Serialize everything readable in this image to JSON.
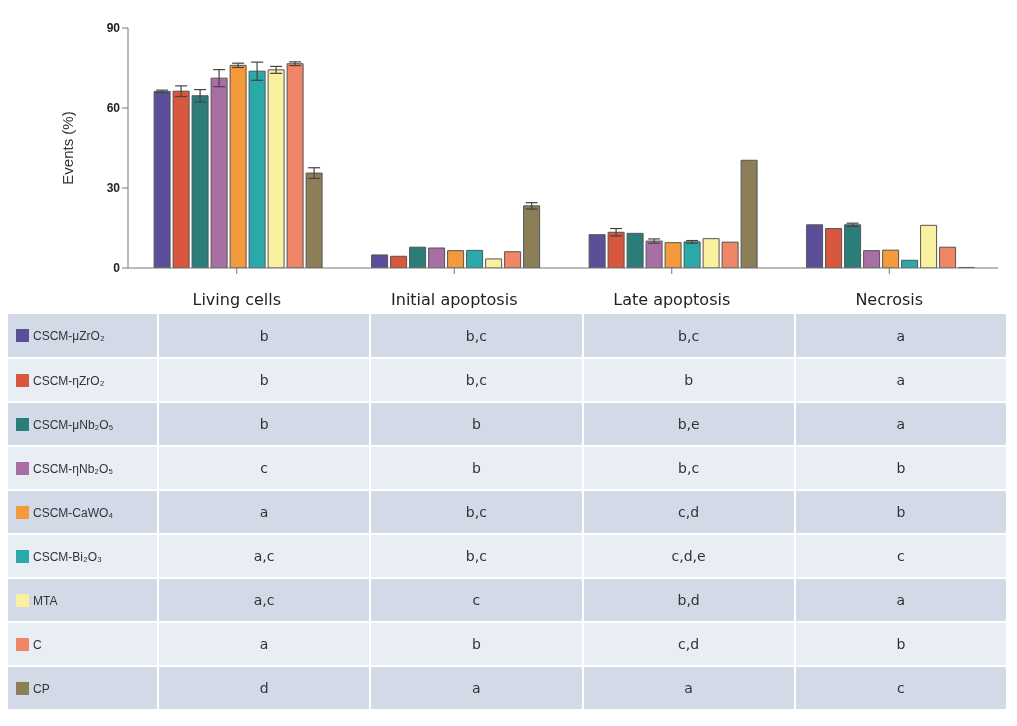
{
  "chart_data": {
    "type": "bar",
    "ylabel": "Events (%)",
    "categories": [
      "Living cells",
      "Initial apoptosis",
      "Late apoptosis",
      "Necrosis"
    ],
    "ylim": [
      0,
      90
    ],
    "yticks": [
      0,
      30,
      60,
      90
    ],
    "legend": "bottom",
    "series": [
      {
        "name": "CSCM-μZrO₂",
        "color": "#5b4f9a",
        "values": [
          66.2,
          4.9,
          12.5,
          16.2
        ],
        "errors": [
          0.5,
          null,
          null,
          null
        ],
        "value_labels": [
          "b",
          "b,c",
          "b,c",
          "a"
        ]
      },
      {
        "name": "CSCM-ηZrO₂",
        "color": "#d9573f",
        "values": [
          66.3,
          4.4,
          13.4,
          14.8
        ],
        "errors": [
          2,
          null,
          1.4,
          null
        ],
        "value_labels": [
          "b",
          "b,c",
          "b",
          "a"
        ]
      },
      {
        "name": "CSCM-μNb₂O₅",
        "color": "#2a7d78",
        "values": [
          64.6,
          7.8,
          13.0,
          16.2
        ],
        "errors": [
          2.3,
          null,
          null,
          0.6
        ],
        "value_labels": [
          "b",
          "b",
          "b,e",
          "a"
        ]
      },
      {
        "name": "CSCM-ηNb₂O₅",
        "color": "#a86fa4",
        "values": [
          71.2,
          7.5,
          10.1,
          6.5
        ],
        "errors": [
          3.2,
          null,
          0.8,
          null
        ],
        "value_labels": [
          "c",
          "b",
          "b,c",
          "b"
        ]
      },
      {
        "name": "CSCM-CaWO₄",
        "color": "#f39a3c",
        "values": [
          76.0,
          6.5,
          9.5,
          6.7
        ],
        "errors": [
          0.8,
          null,
          null,
          null
        ],
        "value_labels": [
          "a",
          "b,c",
          "c,d",
          "b"
        ]
      },
      {
        "name": "CSCM-Bi₂O₃",
        "color": "#2aa9a9",
        "values": [
          73.8,
          6.6,
          9.8,
          2.9
        ],
        "errors": [
          3.4,
          null,
          0.5,
          null
        ],
        "value_labels": [
          "a,c",
          "b,c",
          "c,d,e",
          "c"
        ]
      },
      {
        "name": "MTA",
        "color": "#f9f0a0",
        "values": [
          74.3,
          3.4,
          11.0,
          16.0
        ],
        "errors": [
          1.3,
          null,
          null,
          null
        ],
        "value_labels": [
          "a,c",
          "c",
          "b,d",
          "a"
        ]
      },
      {
        "name": "C",
        "color": "#ef8668",
        "values": [
          76.6,
          6.1,
          9.7,
          7.8
        ],
        "errors": [
          0.7,
          null,
          null,
          null
        ],
        "value_labels": [
          "a",
          "b",
          "c,d",
          "b"
        ]
      },
      {
        "name": "CP",
        "color": "#8c7f58",
        "values": [
          35.6,
          23.3,
          40.4,
          0.2
        ],
        "errors": [
          2,
          1.2,
          null,
          null
        ],
        "value_labels": [
          "d",
          "a",
          "a",
          "c"
        ]
      }
    ]
  }
}
